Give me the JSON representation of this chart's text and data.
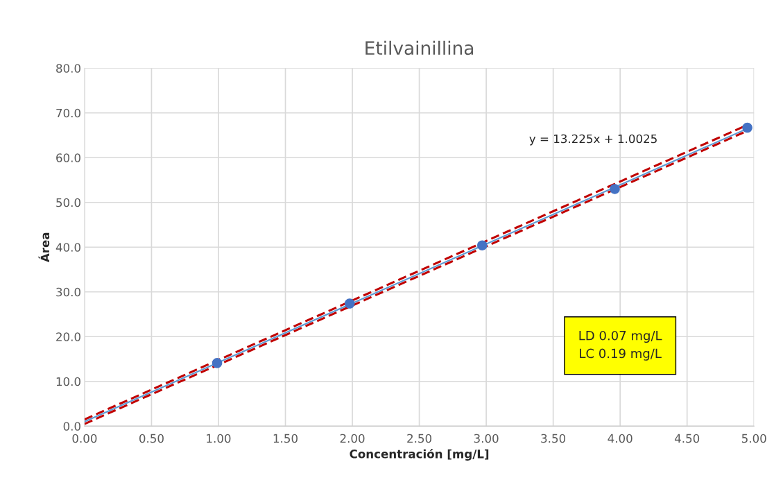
{
  "chart_data": {
    "type": "scatter",
    "title": "Etilvainillina",
    "xlabel": "Concentración [mg/L]",
    "ylabel": "Área",
    "series": [
      {
        "color": "#4472c4",
        "marker": "circle",
        "x": [
          0.99,
          1.98,
          2.97,
          3.96,
          4.95
        ],
        "values": [
          14.1,
          27.4,
          40.4,
          53.0,
          66.7
        ]
      },
      {
        "type": "line",
        "color": "#5b9bd5",
        "line_style": "solid",
        "x": [
          0,
          4.95
        ],
        "values": [
          1.0,
          66.5
        ]
      },
      {
        "type": "line",
        "color": "#c00000",
        "line_style": "dashed",
        "x": [
          0,
          4.95
        ],
        "values": [
          1.5,
          67.3
        ]
      },
      {
        "type": "line",
        "color": "#c00000",
        "line_style": "dashed",
        "x": [
          0,
          4.95
        ],
        "values": [
          0.5,
          66.0
        ]
      }
    ],
    "annotations": [
      "y = 13.225x + 1.0025",
      "LD 0.07 mg/L\nLC 0.19 mg/L"
    ],
    "xlim": [
      0,
      5
    ],
    "xticks": [
      {
        "value": 0,
        "label": "0.00"
      },
      {
        "value": 0.5,
        "label": "0.50"
      },
      {
        "value": 1,
        "label": "1.00"
      },
      {
        "value": 1.5,
        "label": "1.50"
      },
      {
        "value": 2,
        "label": "2.00"
      },
      {
        "value": 2.5,
        "label": "2.50"
      },
      {
        "value": 3,
        "label": "3.00"
      },
      {
        "value": 3.5,
        "label": "3.50"
      },
      {
        "value": 4,
        "label": "4.00"
      },
      {
        "value": 4.5,
        "label": "4.50"
      },
      {
        "value": 5,
        "label": "5.00"
      }
    ],
    "ylim": [
      0,
      80
    ],
    "yticks": [
      {
        "value": 0,
        "label": "0.0"
      },
      {
        "value": 10,
        "label": "10.0"
      },
      {
        "value": 20,
        "label": "20.0"
      },
      {
        "value": 30,
        "label": "30.0"
      },
      {
        "value": 40,
        "label": "40.0"
      },
      {
        "value": 50,
        "label": "50.0"
      },
      {
        "value": 60,
        "label": "60.0"
      },
      {
        "value": 70,
        "label": "70.0"
      },
      {
        "value": 80,
        "label": "80.0"
      }
    ],
    "grid": true,
    "legend": false
  }
}
